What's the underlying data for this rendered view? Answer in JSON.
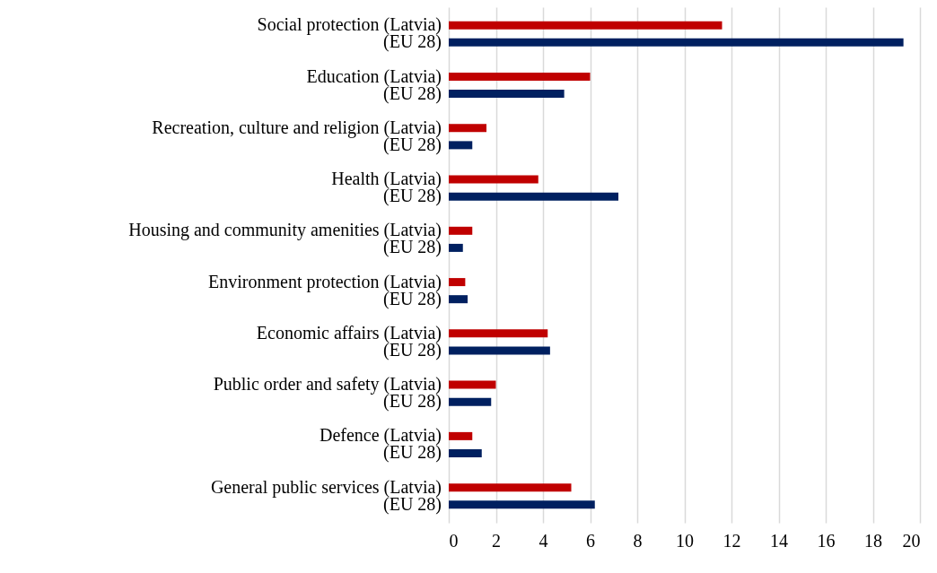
{
  "chart_data": {
    "type": "bar",
    "orientation": "horizontal",
    "categories": [
      "Social protection (Latvia)",
      "(EU 28)",
      "Education (Latvia)",
      "(EU 28)",
      "Recreation, culture and religion (Latvia)",
      "(EU 28)",
      "Health (Latvia)",
      "(EU 28)",
      "Housing and community amenities (Latvia)",
      "(EU 28)",
      "Environment protection (Latvia)",
      "(EU 28)",
      "Economic affairs (Latvia)",
      "(EU 28)",
      "Public order and safety (Latvia)",
      "(EU 28)",
      "Defence (Latvia)",
      "(EU 28)",
      "General public services (Latvia)",
      "(EU 28)"
    ],
    "values": [
      11.6,
      19.3,
      6.0,
      4.9,
      1.6,
      1.0,
      3.8,
      7.2,
      1.0,
      0.6,
      0.7,
      0.8,
      4.2,
      4.3,
      2.0,
      1.8,
      1.0,
      1.4,
      5.2,
      6.2
    ],
    "colors": [
      "#c00000",
      "#002060",
      "#c00000",
      "#002060",
      "#c00000",
      "#002060",
      "#c00000",
      "#002060",
      "#c00000",
      "#002060",
      "#c00000",
      "#002060",
      "#c00000",
      "#002060",
      "#c00000",
      "#002060",
      "#c00000",
      "#002060",
      "#c00000",
      "#002060"
    ],
    "xlim": [
      0,
      20
    ],
    "xticks": [
      0,
      2,
      4,
      6,
      8,
      10,
      12,
      14,
      16,
      18,
      20
    ],
    "grid": "x"
  }
}
